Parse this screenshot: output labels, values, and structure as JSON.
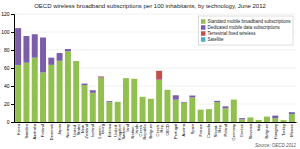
{
  "chart_data": {
    "type": "bar",
    "title": "OECD wireless broadband subscriptions per 100 inhabitants, by technology, June 2012",
    "categories": [
      "Korea",
      "Sweden",
      "Australia",
      "Finland",
      "Denmark",
      "Japan",
      "Norway",
      "United\nStates",
      "New\nZealand",
      "Iceland",
      "Luxem-\nbourg",
      "Estonia",
      "United\nKingdom",
      "Switzer-\nland",
      "Nether-\nlands",
      "Czech\nRepublic",
      "Belgium",
      "Czech\nRep.",
      "OECD",
      "Portugal",
      "Austria",
      "Spain",
      "France",
      "Canada",
      "Slovak\nRep.",
      "Poland",
      "Germany",
      "Greece",
      "Slovenia",
      "Italy",
      "Belgium",
      "Hungary",
      "Turkey",
      "Mexico"
    ],
    "series": [
      {
        "name": "Standard mobile broadband subscriptions",
        "color": "#92c050",
        "values": [
          63.4,
          65.9,
          71.5,
          55.0,
          63.5,
          68.0,
          78.6,
          67.8,
          41.1,
          32.4,
          49.1,
          22.0,
          22.4,
          48.7,
          48.0,
          28.0,
          25.8,
          46.7,
          35.8,
          24.8,
          21.3,
          27.2,
          13.7,
          14.3,
          22.1,
          15.3,
          24.9,
          2.9,
          5.1,
          2.3,
          6.0,
          4.2,
          2.1,
          8.8
        ]
      },
      {
        "name": "Dedicated mobile data subscriptions",
        "color": "#7b5ea7",
        "values": [
          40.9,
          29.7,
          26.0,
          38.9,
          8.0,
          8.6,
          2.5,
          0.0,
          1.6,
          2.9,
          0.7,
          1.1,
          0.0,
          0.0,
          0.0,
          0.0,
          0.0,
          0.7,
          0.0,
          4.9,
          0.8,
          2.2,
          0.0,
          0.0,
          1.4,
          2.1,
          0.0,
          1.4,
          0.0,
          0.0,
          0.0,
          2.9,
          0.0,
          2.1
        ]
      },
      {
        "name": "Terrestrial fixed wireless",
        "color": "#c0504d",
        "values": [
          0.0,
          0.0,
          0.0,
          0.0,
          0.0,
          0.0,
          0.0,
          0.0,
          0.0,
          0.0,
          0.8,
          0.0,
          0.0,
          0.0,
          0.0,
          0.0,
          0.0,
          9.5,
          0.0,
          0.0,
          0.0,
          0.0,
          0.0,
          0.0,
          0.0,
          0.0,
          0.0,
          0.0,
          0.0,
          0.0,
          0.0,
          0.0,
          0.0,
          0.0
        ]
      },
      {
        "name": "Satellite",
        "color": "#4bacc6",
        "values": [
          0.0,
          0.0,
          0.0,
          0.0,
          0.0,
          0.0,
          0.0,
          0.0,
          0.0,
          0.0,
          0.0,
          0.0,
          0.0,
          0.0,
          0.0,
          0.0,
          0.0,
          0.0,
          0.0,
          0.0,
          0.0,
          0.0,
          0.0,
          0.0,
          0.0,
          0.0,
          0.0,
          0.0,
          0.0,
          0.0,
          0.0,
          0.0,
          0.0,
          0.2
        ]
      }
    ],
    "stacked": true,
    "ylim": [
      0,
      120
    ],
    "yticks": [
      0,
      20,
      40,
      60,
      80,
      100,
      120
    ],
    "grid": true,
    "legend": "upper right",
    "annotations": [
      "Source: OECD 2012"
    ]
  }
}
